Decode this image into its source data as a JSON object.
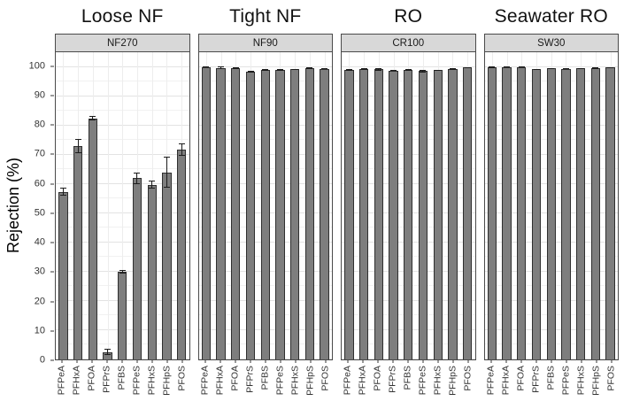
{
  "chart_data": {
    "type": "bar",
    "title": "",
    "ylabel": "Rejection (%)",
    "xlabel": "",
    "ylim": [
      0,
      105
    ],
    "yticks": [
      0,
      10,
      20,
      30,
      40,
      50,
      60,
      70,
      80,
      90,
      100
    ],
    "grid": "major and minor horizontal, faint vertical at categories",
    "legend": "none",
    "error_bars": true,
    "categories": [
      "PFPeA",
      "PFHxA",
      "PFOA",
      "PFPrS",
      "PFBS",
      "PFPeS",
      "PFHxS",
      "PFHpS",
      "PFOS"
    ],
    "facets": [
      {
        "group_title": "Loose NF",
        "membrane": "NF270",
        "values": [
          57.3,
          73.0,
          82.4,
          2.5,
          30.0,
          62.0,
          59.7,
          64.0,
          71.7
        ],
        "errors": [
          1.3,
          2.5,
          0.8,
          1.0,
          0.5,
          2.0,
          1.4,
          5.3,
          2.0
        ]
      },
      {
        "group_title": "Tight NF",
        "membrane": "NF90",
        "values": [
          100.0,
          99.7,
          99.6,
          98.4,
          99.0,
          99.0,
          99.2,
          99.6,
          99.4
        ],
        "errors": [
          0.1,
          0.5,
          0.3,
          0.4,
          0.1,
          0.1,
          0.1,
          0.3,
          0.1
        ]
      },
      {
        "group_title": "RO",
        "membrane": "CR100",
        "values": [
          99.0,
          99.3,
          99.2,
          98.7,
          98.9,
          98.5,
          98.9,
          99.3,
          99.8
        ],
        "errors": [
          0.2,
          0.3,
          0.5,
          0.2,
          0.4,
          0.5,
          0.2,
          0.2,
          0.1
        ]
      },
      {
        "group_title": "Seawater RO",
        "membrane": "SW30",
        "values": [
          99.9,
          100.0,
          100.0,
          99.2,
          99.5,
          99.4,
          99.5,
          99.6,
          99.8
        ],
        "errors": [
          0.1,
          0.1,
          0.1,
          0.1,
          0.1,
          0.1,
          0.1,
          0.1,
          0.1
        ]
      }
    ],
    "colors": {
      "bar_fill": "#7e7e7e",
      "bar_stroke": "#2f2f2f",
      "error_bar": "#1c1c1c",
      "strip_bg": "#d8d8d8",
      "panel_border": "#4a4a4a",
      "grid_major": "#e3e3e3",
      "grid_minor": "#f1f1f1",
      "text": "#333333"
    }
  }
}
